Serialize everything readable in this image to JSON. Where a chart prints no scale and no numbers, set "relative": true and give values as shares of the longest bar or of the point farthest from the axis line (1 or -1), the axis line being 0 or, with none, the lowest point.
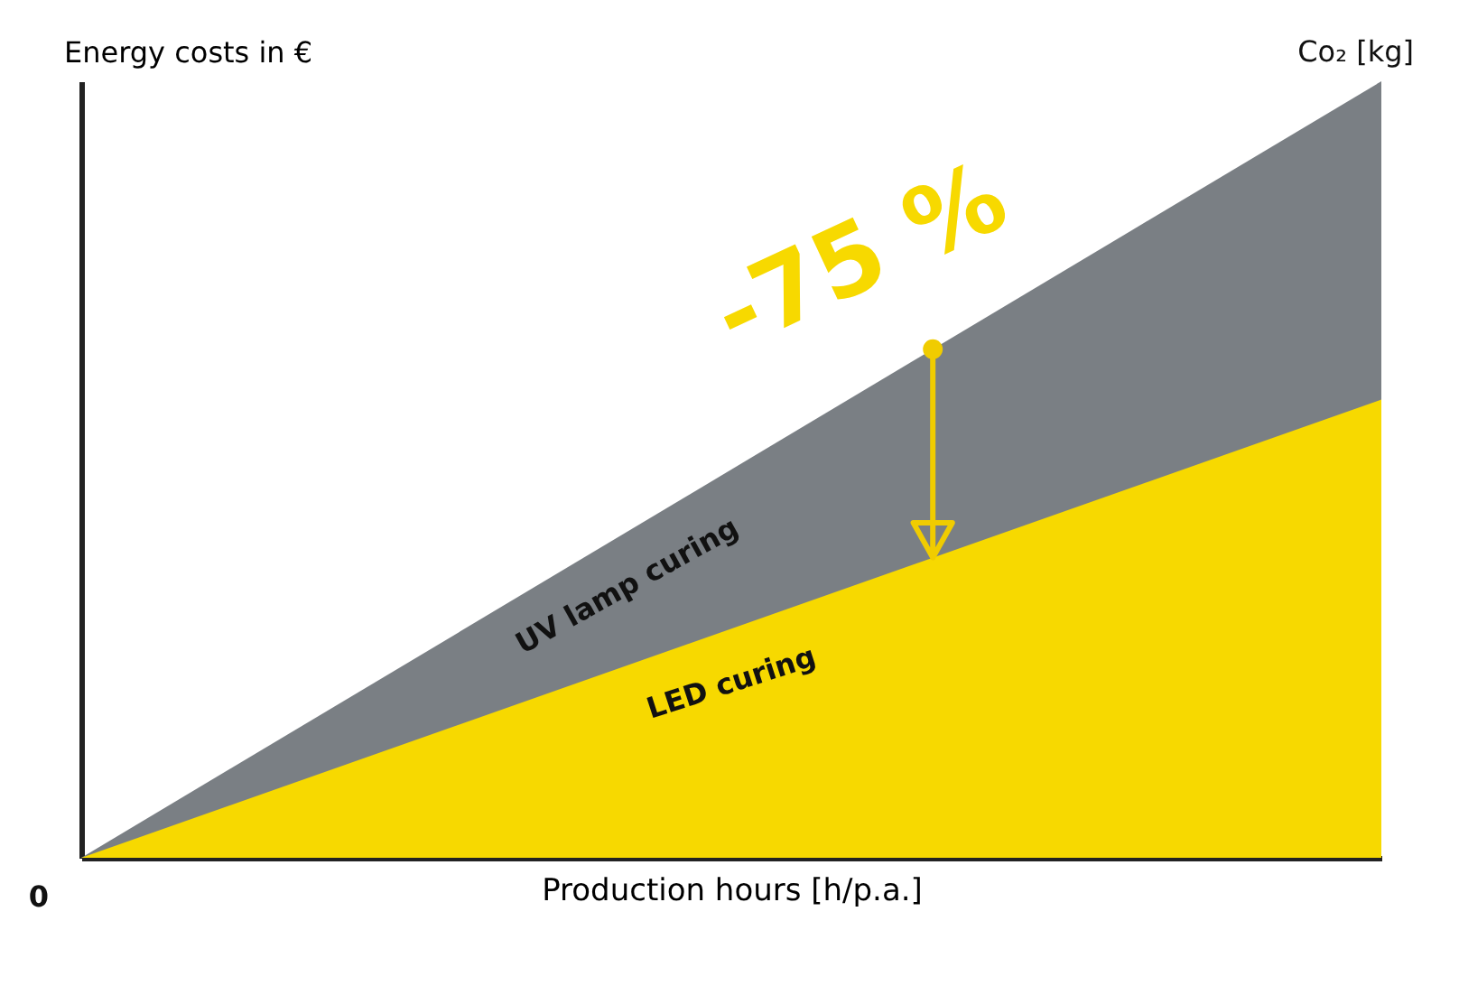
{
  "chart_data": {
    "type": "area",
    "relative": true,
    "xlabel": "Production hours [h/p.a.]",
    "ylabel": "Energy costs in €",
    "y2label": "Co₂ [kg]",
    "categories": [
      null,
      null
    ],
    "series": [
      {
        "name": "UV lamp curing",
        "color": "#7a7f84",
        "values": [
          0,
          1
        ]
      },
      {
        "name": "LED curing",
        "color": "#f7d900",
        "values": [
          0,
          0.59
        ]
      }
    ],
    "annotations": [
      "-75 %",
      "0"
    ]
  }
}
